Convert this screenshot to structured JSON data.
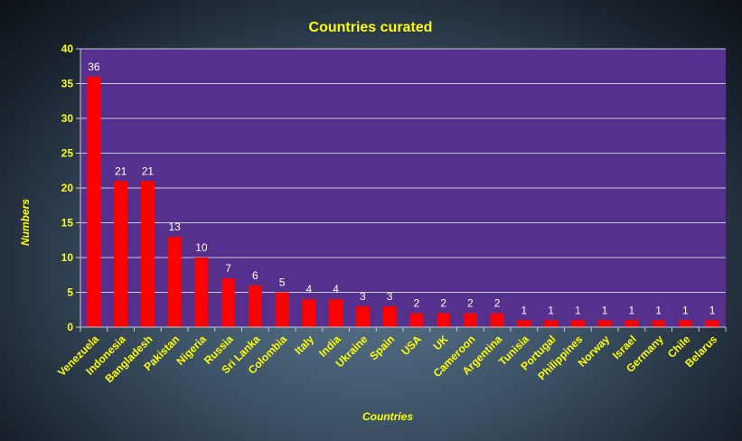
{
  "chart_data": {
    "type": "bar",
    "title": "Countries curated",
    "xlabel": "Countries",
    "ylabel": "Numbers",
    "ylim": [
      0,
      40
    ],
    "yticks": [
      0,
      5,
      10,
      15,
      20,
      25,
      30,
      35,
      40
    ],
    "grid": true,
    "legend": "none",
    "categories": [
      "Venezuela",
      "Indonesia",
      "Bangladesh",
      "Pakistan",
      "Nigeria",
      "Russia",
      "Sri Lanka",
      "Colombia",
      "Italy",
      "India",
      "Ukraine",
      "Spain",
      "USA",
      "UK",
      "Cameroon",
      "Argentina",
      "Tunisia",
      "Portugal",
      "Philippines",
      "Norway",
      "Israel",
      "Germany",
      "Chile",
      "Belarus"
    ],
    "values": [
      36,
      21,
      21,
      13,
      10,
      7,
      6,
      5,
      4,
      4,
      3,
      3,
      2,
      2,
      2,
      2,
      1,
      1,
      1,
      1,
      1,
      1,
      1,
      1
    ],
    "colors": {
      "plot_background": "#55308d",
      "bar": "#ff0000",
      "text": "#ffff00",
      "data_label": "#ffffff",
      "grid": "#c8c8d8"
    }
  }
}
